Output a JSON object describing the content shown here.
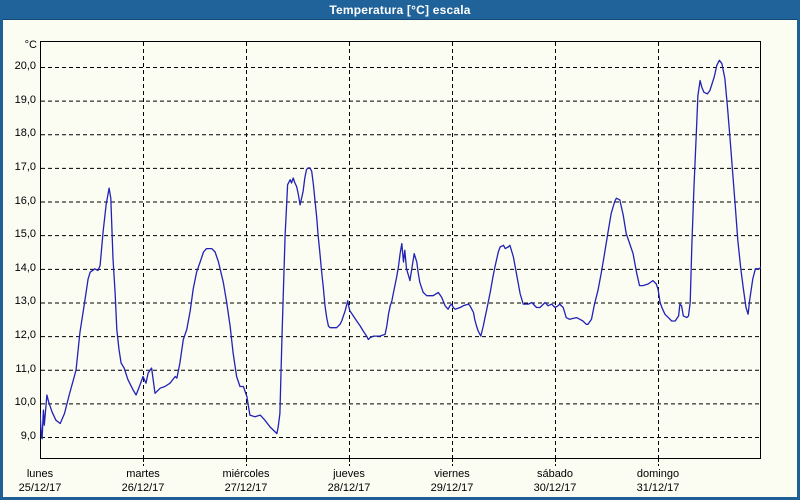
{
  "window": {
    "title": "Temperatura [°C] escala",
    "titlebar_color": "#20639b",
    "border_color": "#1e6096",
    "background_color": "#fbfcf2"
  },
  "chart_data": {
    "type": "line",
    "title": "Temperatura [°C] escala",
    "ylabel": "°C",
    "y_unit_label": "°C",
    "ylim": [
      9,
      20
    ],
    "y_ticks": [
      "20,0",
      "19,0",
      "18,0",
      "17,0",
      "16,0",
      "15,0",
      "14,0",
      "13,0",
      "12,0",
      "11,0",
      "10,0",
      "9,0"
    ],
    "y_tick_values": [
      20,
      19,
      18,
      17,
      16,
      15,
      14,
      13,
      12,
      11,
      10,
      9
    ],
    "grid": "dashed",
    "legend": "none",
    "line_color": "#2222b6",
    "x_range_hours": 168,
    "x_days": [
      {
        "name": "lunes",
        "date": "25/12/17"
      },
      {
        "name": "martes",
        "date": "26/12/17"
      },
      {
        "name": "miércoles",
        "date": "27/12/17"
      },
      {
        "name": "jueves",
        "date": "28/12/17"
      },
      {
        "name": "viernes",
        "date": "29/12/17"
      },
      {
        "name": "sábado",
        "date": "30/12/17"
      },
      {
        "name": "domingo",
        "date": "31/12/17"
      }
    ],
    "series": [
      {
        "name": "Temperatura [°C]",
        "points": [
          [
            0,
            9.7
          ],
          [
            0.35,
            9.0
          ],
          [
            0.5,
            8.95
          ],
          [
            0.8,
            9.8
          ],
          [
            1.0,
            9.35
          ],
          [
            1.6,
            10.25
          ],
          [
            2.0,
            10.05
          ],
          [
            2.8,
            9.75
          ],
          [
            3.7,
            9.5
          ],
          [
            4.7,
            9.4
          ],
          [
            5.7,
            9.7
          ],
          [
            6.8,
            10.25
          ],
          [
            8.0,
            10.8
          ],
          [
            8.4,
            11.0
          ],
          [
            9.3,
            12.1
          ],
          [
            10.5,
            13.1
          ],
          [
            11.2,
            13.7
          ],
          [
            11.7,
            13.9
          ],
          [
            12.8,
            14.0
          ],
          [
            13.5,
            13.95
          ],
          [
            14.0,
            14.1
          ],
          [
            14.7,
            15.1
          ],
          [
            15.4,
            15.9
          ],
          [
            16.1,
            16.4
          ],
          [
            16.5,
            16.1
          ],
          [
            17.0,
            14.3
          ],
          [
            17.5,
            13.3
          ],
          [
            17.9,
            12.2
          ],
          [
            18.4,
            11.6
          ],
          [
            18.9,
            11.2
          ],
          [
            19.6,
            11.05
          ],
          [
            20.5,
            10.7
          ],
          [
            21.7,
            10.4
          ],
          [
            22.4,
            10.25
          ],
          [
            23.3,
            10.55
          ],
          [
            24.0,
            10.8
          ],
          [
            24.7,
            10.6
          ],
          [
            25.2,
            10.9
          ],
          [
            26.0,
            11.05
          ],
          [
            26.8,
            10.3
          ],
          [
            28.0,
            10.45
          ],
          [
            29.1,
            10.5
          ],
          [
            30.3,
            10.6
          ],
          [
            31.5,
            10.8
          ],
          [
            31.9,
            10.75
          ],
          [
            32.6,
            11.2
          ],
          [
            33.4,
            11.9
          ],
          [
            34.2,
            12.2
          ],
          [
            35.0,
            12.75
          ],
          [
            35.7,
            13.4
          ],
          [
            36.5,
            13.9
          ],
          [
            37.3,
            14.2
          ],
          [
            38.1,
            14.5
          ],
          [
            38.8,
            14.6
          ],
          [
            40.0,
            14.6
          ],
          [
            40.8,
            14.5
          ],
          [
            41.6,
            14.2
          ],
          [
            42.7,
            13.6
          ],
          [
            43.5,
            13.0
          ],
          [
            44.3,
            12.3
          ],
          [
            45.0,
            11.5
          ],
          [
            45.8,
            10.8
          ],
          [
            46.6,
            10.5
          ],
          [
            47.4,
            10.5
          ],
          [
            48.2,
            10.2
          ],
          [
            48.9,
            9.65
          ],
          [
            50.1,
            9.6
          ],
          [
            51.3,
            9.65
          ],
          [
            52.4,
            9.5
          ],
          [
            53.6,
            9.3
          ],
          [
            55.2,
            9.1
          ],
          [
            55.5,
            9.3
          ],
          [
            55.9,
            9.7
          ],
          [
            56.4,
            12.0
          ],
          [
            57.1,
            15.0
          ],
          [
            57.5,
            16.0
          ],
          [
            57.7,
            16.5
          ],
          [
            58.3,
            16.65
          ],
          [
            58.6,
            16.55
          ],
          [
            59.0,
            16.7
          ],
          [
            59.4,
            16.55
          ],
          [
            59.8,
            16.45
          ],
          [
            60.2,
            16.2
          ],
          [
            60.6,
            15.9
          ],
          [
            61.3,
            16.3
          ],
          [
            61.7,
            16.7
          ],
          [
            62.1,
            16.95
          ],
          [
            62.5,
            17.0
          ],
          [
            62.9,
            17.0
          ],
          [
            63.3,
            16.9
          ],
          [
            63.7,
            16.5
          ],
          [
            64.1,
            16.0
          ],
          [
            64.5,
            15.5
          ],
          [
            64.8,
            15.0
          ],
          [
            65.2,
            14.5
          ],
          [
            65.6,
            13.95
          ],
          [
            66.0,
            13.45
          ],
          [
            66.4,
            12.9
          ],
          [
            66.8,
            12.55
          ],
          [
            67.2,
            12.3
          ],
          [
            67.6,
            12.25
          ],
          [
            68.3,
            12.25
          ],
          [
            69.1,
            12.25
          ],
          [
            69.9,
            12.35
          ],
          [
            70.3,
            12.45
          ],
          [
            70.7,
            12.6
          ],
          [
            71.1,
            12.75
          ],
          [
            71.5,
            12.95
          ],
          [
            71.7,
            13.05
          ],
          [
            72.0,
            12.85
          ],
          [
            72.2,
            12.75
          ],
          [
            73.0,
            12.6
          ],
          [
            73.8,
            12.45
          ],
          [
            74.6,
            12.3
          ],
          [
            75.3,
            12.15
          ],
          [
            76.1,
            12.0
          ],
          [
            76.5,
            11.9
          ],
          [
            76.9,
            11.95
          ],
          [
            77.7,
            12.0
          ],
          [
            79.2,
            12.0
          ],
          [
            80.4,
            12.05
          ],
          [
            80.8,
            12.3
          ],
          [
            81.2,
            12.65
          ],
          [
            81.6,
            12.9
          ],
          [
            82.0,
            13.05
          ],
          [
            82.3,
            13.25
          ],
          [
            82.7,
            13.5
          ],
          [
            83.1,
            13.75
          ],
          [
            83.5,
            14.05
          ],
          [
            83.9,
            14.45
          ],
          [
            84.3,
            14.75
          ],
          [
            84.7,
            14.2
          ],
          [
            85.0,
            14.55
          ],
          [
            85.4,
            14.0
          ],
          [
            86.1,
            13.7
          ],
          [
            86.2,
            13.65
          ],
          [
            87.0,
            14.3
          ],
          [
            87.2,
            14.45
          ],
          [
            87.8,
            14.2
          ],
          [
            88.1,
            13.9
          ],
          [
            88.5,
            13.6
          ],
          [
            89.3,
            13.3
          ],
          [
            90.1,
            13.2
          ],
          [
            91.6,
            13.2
          ],
          [
            92.8,
            13.3
          ],
          [
            93.6,
            13.15
          ],
          [
            94.4,
            12.9
          ],
          [
            95.1,
            12.8
          ],
          [
            95.5,
            12.9
          ],
          [
            95.9,
            12.95
          ],
          [
            96.3,
            12.85
          ],
          [
            96.7,
            12.8
          ],
          [
            97.9,
            12.85
          ],
          [
            98.6,
            12.9
          ],
          [
            99.8,
            12.95
          ],
          [
            100.2,
            12.9
          ],
          [
            101.0,
            12.7
          ],
          [
            101.3,
            12.5
          ],
          [
            101.7,
            12.3
          ],
          [
            102.1,
            12.15
          ],
          [
            102.7,
            12.0
          ],
          [
            103.3,
            12.3
          ],
          [
            103.7,
            12.55
          ],
          [
            104.1,
            12.8
          ],
          [
            104.9,
            13.3
          ],
          [
            105.6,
            13.8
          ],
          [
            106.0,
            14.05
          ],
          [
            106.8,
            14.5
          ],
          [
            107.2,
            14.65
          ],
          [
            108.0,
            14.7
          ],
          [
            108.4,
            14.6
          ],
          [
            109.1,
            14.65
          ],
          [
            109.5,
            14.7
          ],
          [
            110.3,
            14.35
          ],
          [
            111.1,
            13.8
          ],
          [
            111.9,
            13.25
          ],
          [
            112.6,
            12.95
          ],
          [
            113.8,
            12.95
          ],
          [
            114.6,
            13.0
          ],
          [
            115.7,
            12.85
          ],
          [
            116.5,
            12.85
          ],
          [
            117.7,
            13.0
          ],
          [
            118.4,
            12.9
          ],
          [
            119.2,
            12.95
          ],
          [
            120.0,
            12.85
          ],
          [
            120.7,
            12.9
          ],
          [
            121.1,
            12.95
          ],
          [
            121.9,
            12.85
          ],
          [
            122.6,
            12.55
          ],
          [
            123.4,
            12.5
          ],
          [
            125.0,
            12.55
          ],
          [
            125.8,
            12.5
          ],
          [
            126.5,
            12.45
          ],
          [
            127.3,
            12.35
          ],
          [
            127.7,
            12.35
          ],
          [
            128.5,
            12.5
          ],
          [
            129.2,
            12.95
          ],
          [
            130.0,
            13.35
          ],
          [
            130.8,
            13.9
          ],
          [
            131.6,
            14.5
          ],
          [
            132.3,
            15.05
          ],
          [
            133.1,
            15.65
          ],
          [
            133.9,
            16.0
          ],
          [
            134.3,
            16.1
          ],
          [
            135.1,
            16.05
          ],
          [
            135.9,
            15.6
          ],
          [
            136.6,
            15.05
          ],
          [
            137.4,
            14.75
          ],
          [
            138.2,
            14.45
          ],
          [
            139.0,
            13.9
          ],
          [
            139.7,
            13.5
          ],
          [
            140.5,
            13.5
          ],
          [
            141.7,
            13.55
          ],
          [
            142.8,
            13.65
          ],
          [
            143.6,
            13.55
          ],
          [
            144.0,
            13.4
          ],
          [
            144.5,
            13.0
          ],
          [
            144.9,
            12.85
          ],
          [
            145.6,
            12.65
          ],
          [
            146.4,
            12.55
          ],
          [
            147.2,
            12.45
          ],
          [
            148.0,
            12.45
          ],
          [
            148.8,
            12.6
          ],
          [
            149.1,
            12.95
          ],
          [
            149.5,
            12.9
          ],
          [
            149.9,
            12.6
          ],
          [
            150.7,
            12.55
          ],
          [
            151.1,
            12.6
          ],
          [
            151.5,
            13.0
          ],
          [
            151.9,
            14.75
          ],
          [
            152.4,
            16.45
          ],
          [
            152.9,
            17.95
          ],
          [
            153.3,
            19.15
          ],
          [
            153.8,
            19.6
          ],
          [
            154.2,
            19.4
          ],
          [
            154.7,
            19.25
          ],
          [
            155.5,
            19.2
          ],
          [
            156.1,
            19.3
          ],
          [
            157.1,
            19.7
          ],
          [
            157.7,
            20.05
          ],
          [
            158.3,
            20.2
          ],
          [
            158.9,
            20.1
          ],
          [
            159.6,
            19.65
          ],
          [
            160.2,
            18.8
          ],
          [
            160.8,
            17.85
          ],
          [
            161.4,
            16.85
          ],
          [
            162.0,
            15.85
          ],
          [
            162.6,
            14.85
          ],
          [
            163.3,
            14.0
          ],
          [
            163.9,
            13.4
          ],
          [
            164.5,
            12.85
          ],
          [
            165.0,
            12.65
          ],
          [
            165.4,
            13.1
          ],
          [
            166.1,
            13.7
          ],
          [
            166.7,
            14.0
          ],
          [
            167.3,
            14.0
          ],
          [
            167.6,
            14.0
          ],
          [
            168.0,
            14.05
          ]
        ]
      }
    ]
  }
}
